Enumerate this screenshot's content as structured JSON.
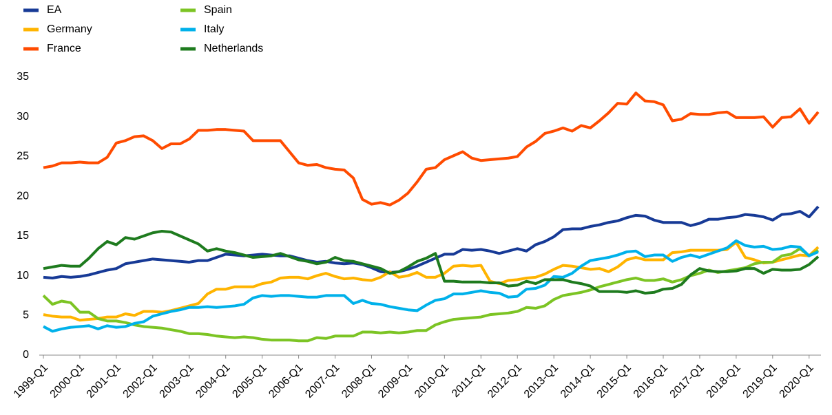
{
  "chart_data": {
    "type": "line",
    "categories": [
      "1999-Q1",
      null,
      null,
      null,
      "2000-Q1",
      null,
      null,
      null,
      "2001-Q1",
      null,
      null,
      null,
      "2002-Q1",
      null,
      null,
      null,
      "2003-Q1",
      null,
      null,
      null,
      "2004-Q1",
      null,
      null,
      null,
      "2005-Q1",
      null,
      null,
      null,
      "2006-Q1",
      null,
      null,
      null,
      "2007-Q1",
      null,
      null,
      null,
      "2008-Q1",
      null,
      null,
      null,
      "2009-Q1",
      null,
      null,
      null,
      "2010-Q1",
      null,
      null,
      null,
      "2011-Q1",
      null,
      null,
      null,
      "2012-Q1",
      null,
      null,
      null,
      "2013-Q1",
      null,
      null,
      null,
      "2014-Q1",
      null,
      null,
      null,
      "2015-Q1",
      null,
      null,
      null,
      "2016-Q1",
      null,
      null,
      null,
      "2017-Q1",
      null,
      null,
      null,
      "2018-Q1",
      null,
      null,
      null,
      "2019-Q1",
      null,
      null,
      null,
      "2020-Q1",
      null
    ],
    "series": [
      {
        "name": "EA",
        "color": "#173a96",
        "values": [
          9.8,
          9.7,
          9.9,
          9.8,
          9.9,
          10.1,
          10.4,
          10.7,
          10.9,
          11.5,
          11.7,
          11.9,
          12.1,
          12.0,
          11.9,
          11.8,
          11.7,
          11.9,
          11.9,
          12.3,
          12.7,
          12.6,
          12.5,
          12.6,
          12.7,
          12.6,
          12.5,
          12.5,
          12.2,
          11.9,
          11.7,
          11.8,
          11.6,
          11.5,
          11.6,
          11.4,
          11.0,
          10.5,
          10.4,
          10.5,
          10.8,
          11.2,
          11.7,
          12.2,
          12.7,
          12.7,
          13.3,
          13.2,
          13.3,
          13.1,
          12.8,
          13.1,
          13.4,
          13.1,
          13.9,
          14.3,
          14.9,
          15.8,
          15.9,
          15.9,
          16.2,
          16.4,
          16.7,
          16.9,
          17.3,
          17.6,
          17.5,
          17.0,
          16.7,
          16.7,
          16.7,
          16.3,
          16.6,
          17.1,
          17.1,
          17.3,
          17.4,
          17.7,
          17.6,
          17.4,
          17.0,
          17.7,
          17.8,
          18.1,
          17.4,
          18.7
        ]
      },
      {
        "name": "Germany",
        "color": "#ffb400",
        "values": [
          5.1,
          4.9,
          4.8,
          4.8,
          4.4,
          4.5,
          4.6,
          4.8,
          4.8,
          5.2,
          5.0,
          5.5,
          5.5,
          5.4,
          5.6,
          5.9,
          6.2,
          6.5,
          7.7,
          8.3,
          8.3,
          8.6,
          8.6,
          8.6,
          9.0,
          9.2,
          9.7,
          9.8,
          9.8,
          9.6,
          10.0,
          10.3,
          9.9,
          9.6,
          9.7,
          9.5,
          9.4,
          9.8,
          10.5,
          9.8,
          10.0,
          10.4,
          9.8,
          9.8,
          10.3,
          11.2,
          11.3,
          11.2,
          11.3,
          9.3,
          9.0,
          9.4,
          9.5,
          9.7,
          9.8,
          10.2,
          10.8,
          11.3,
          11.2,
          11.0,
          10.8,
          10.9,
          10.5,
          11.1,
          12.0,
          12.3,
          12.0,
          12.0,
          12.0,
          12.9,
          13.0,
          13.2,
          13.2,
          13.2,
          13.2,
          13.3,
          14.2,
          12.3,
          12.0,
          11.6,
          11.7,
          12.0,
          12.3,
          12.6,
          12.5,
          13.6
        ]
      },
      {
        "name": "France",
        "color": "#ff4b00",
        "values": [
          23.6,
          23.8,
          24.2,
          24.2,
          24.3,
          24.2,
          24.2,
          24.9,
          26.7,
          27.0,
          27.5,
          27.6,
          27.0,
          26.0,
          26.6,
          26.6,
          27.2,
          28.3,
          28.3,
          28.4,
          28.4,
          28.3,
          28.2,
          27.0,
          27.0,
          27.0,
          27.0,
          25.6,
          24.2,
          23.9,
          24.0,
          23.6,
          23.4,
          23.3,
          22.3,
          19.6,
          19.0,
          19.2,
          18.9,
          19.5,
          20.4,
          21.8,
          23.4,
          23.6,
          24.6,
          25.1,
          25.6,
          24.8,
          24.5,
          24.6,
          24.7,
          24.8,
          25.0,
          26.2,
          26.9,
          27.9,
          28.2,
          28.6,
          28.2,
          28.9,
          28.6,
          29.5,
          30.5,
          31.7,
          31.6,
          33.0,
          32.0,
          31.9,
          31.5,
          29.5,
          29.7,
          30.4,
          30.3,
          30.3,
          30.5,
          30.6,
          29.9,
          29.9,
          29.9,
          30.0,
          28.7,
          29.9,
          30.0,
          31.0,
          29.2,
          30.6
        ]
      },
      {
        "name": "Spain",
        "color": "#7cc424",
        "values": [
          7.5,
          6.4,
          6.8,
          6.6,
          5.4,
          5.4,
          4.6,
          4.3,
          4.3,
          4.1,
          3.8,
          3.6,
          3.5,
          3.4,
          3.2,
          3.0,
          2.7,
          2.7,
          2.6,
          2.4,
          2.3,
          2.2,
          2.3,
          2.2,
          2.0,
          1.9,
          1.9,
          1.9,
          1.8,
          1.8,
          2.2,
          2.1,
          2.4,
          2.4,
          2.4,
          2.9,
          2.9,
          2.8,
          2.9,
          2.8,
          2.9,
          3.1,
          3.1,
          3.8,
          4.2,
          4.5,
          4.6,
          4.7,
          4.8,
          5.1,
          5.2,
          5.3,
          5.5,
          6.0,
          5.9,
          6.2,
          7.0,
          7.5,
          7.7,
          7.9,
          8.2,
          8.6,
          8.9,
          9.2,
          9.5,
          9.7,
          9.4,
          9.4,
          9.6,
          9.2,
          9.5,
          10.0,
          10.3,
          10.7,
          10.4,
          10.6,
          10.8,
          11.0,
          11.5,
          11.7,
          11.7,
          12.5,
          12.7,
          13.4,
          12.5,
          13.2
        ]
      },
      {
        "name": "Italy",
        "color": "#00b1ea",
        "values": [
          3.6,
          3.0,
          3.3,
          3.5,
          3.6,
          3.7,
          3.3,
          3.7,
          3.5,
          3.6,
          4.0,
          4.2,
          4.9,
          5.2,
          5.5,
          5.7,
          6.0,
          6.0,
          6.1,
          6.0,
          6.1,
          6.2,
          6.4,
          7.2,
          7.5,
          7.4,
          7.5,
          7.5,
          7.4,
          7.3,
          7.3,
          7.5,
          7.5,
          7.5,
          6.5,
          6.9,
          6.5,
          6.4,
          6.1,
          5.9,
          5.7,
          5.6,
          6.3,
          6.9,
          7.1,
          7.7,
          7.7,
          7.9,
          8.1,
          7.9,
          7.8,
          7.3,
          7.4,
          8.3,
          8.4,
          8.8,
          9.9,
          9.8,
          10.3,
          11.2,
          11.9,
          12.1,
          12.3,
          12.6,
          13.0,
          13.1,
          12.4,
          12.6,
          12.6,
          11.8,
          12.3,
          12.6,
          12.3,
          12.7,
          13.1,
          13.5,
          14.4,
          13.8,
          13.6,
          13.7,
          13.3,
          13.4,
          13.7,
          13.6,
          12.5,
          13.0
        ]
      },
      {
        "name": "Netherlands",
        "color": "#1e7b1e",
        "values": [
          10.9,
          11.1,
          11.3,
          11.2,
          11.2,
          12.2,
          13.4,
          14.3,
          13.9,
          14.8,
          14.6,
          15.0,
          15.4,
          15.6,
          15.5,
          15.0,
          14.5,
          14.0,
          13.1,
          13.4,
          13.1,
          12.9,
          12.6,
          12.3,
          12.4,
          12.5,
          12.8,
          12.4,
          12.0,
          11.8,
          11.5,
          11.7,
          12.3,
          11.9,
          11.8,
          11.5,
          11.2,
          10.9,
          10.3,
          10.5,
          11.1,
          11.8,
          12.2,
          12.8,
          9.3,
          9.3,
          9.2,
          9.2,
          9.2,
          9.1,
          9.1,
          8.7,
          8.8,
          9.3,
          9.0,
          9.5,
          9.5,
          9.5,
          9.2,
          9.0,
          8.7,
          8.0,
          8.0,
          8.0,
          7.9,
          8.1,
          7.8,
          7.9,
          8.3,
          8.4,
          8.9,
          10.1,
          10.9,
          10.6,
          10.5,
          10.5,
          10.6,
          10.9,
          10.9,
          10.3,
          10.8,
          10.7,
          10.7,
          10.8,
          11.4,
          12.4
        ]
      }
    ],
    "ylim": [
      0,
      35
    ],
    "yticks": [
      0,
      5,
      10,
      15,
      20,
      25,
      30,
      35
    ],
    "grid": false
  }
}
